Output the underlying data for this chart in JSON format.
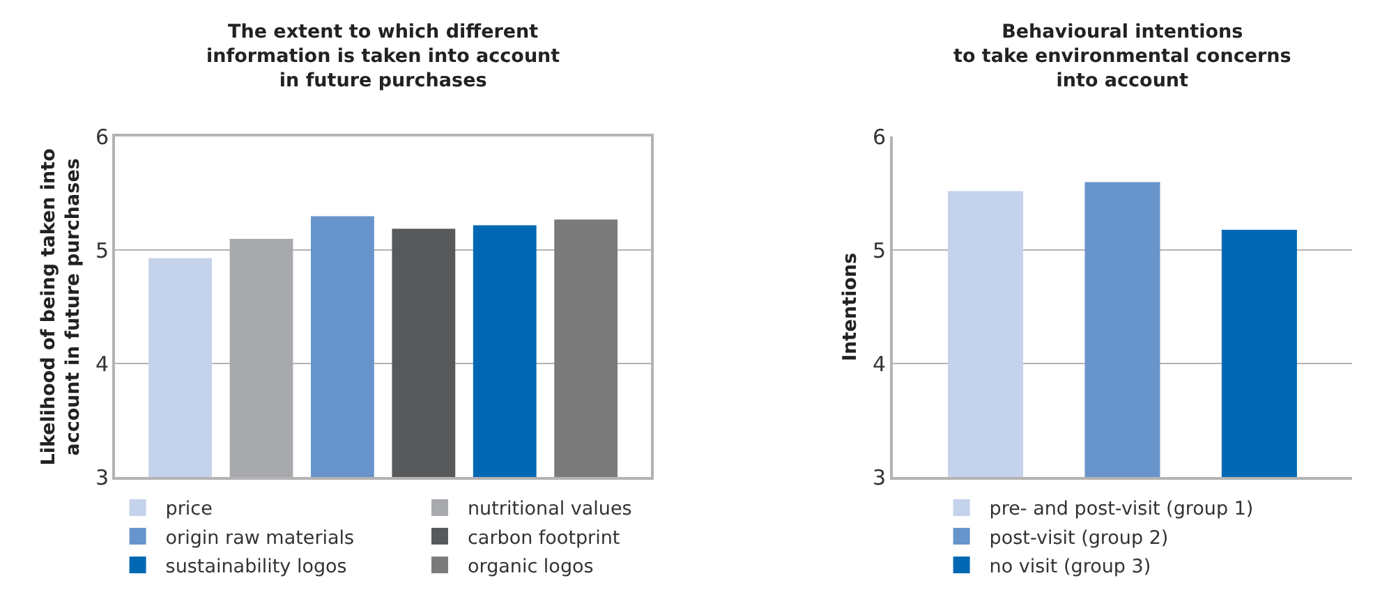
{
  "chart_data": [
    {
      "type": "bar",
      "title": "The extent to which different\ninformation is taken into account\nin future purchases",
      "ylabel": "Likelihood of being taken into\naccount in future purchases",
      "categories": [
        null,
        null,
        null,
        null,
        null,
        null
      ],
      "series": [
        {
          "name": "price",
          "color": "#c5d2eb",
          "values": [
            4.93,
            null,
            null,
            null,
            null,
            null
          ]
        },
        {
          "name": "nutritional values",
          "color": "#a8a9ad",
          "values": [
            null,
            5.1,
            null,
            null,
            null,
            null
          ]
        },
        {
          "name": "origin raw materials",
          "color": "#6794cb",
          "values": [
            null,
            null,
            5.3,
            null,
            null,
            null
          ]
        },
        {
          "name": "carbon footprint",
          "color": "#58595b",
          "values": [
            null,
            null,
            null,
            5.19,
            null,
            null
          ]
        },
        {
          "name": "sustainability logos",
          "color": "#0068b3",
          "values": [
            null,
            null,
            null,
            null,
            5.22,
            null
          ]
        },
        {
          "name": "organic logos",
          "color": "#7a7a7a",
          "values": [
            null,
            null,
            null,
            null,
            null,
            5.27
          ]
        }
      ],
      "ylim": [
        3,
        6
      ],
      "yticks": [
        3,
        4,
        5,
        6
      ],
      "grid": "y",
      "legend": "bottom"
    },
    {
      "type": "bar",
      "title": "Behavioural intentions\nto take environmental concerns\ninto account",
      "ylabel": "Intentions",
      "categories": [
        null,
        null,
        null
      ],
      "series": [
        {
          "name": "pre- and post-visit (group 1)",
          "color": "#c5d2eb",
          "values": [
            5.52,
            null,
            null
          ]
        },
        {
          "name": "post-visit (group 2)",
          "color": "#6794cb",
          "values": [
            null,
            5.6,
            null
          ]
        },
        {
          "name": "no visit (group 3)",
          "color": "#0068b3",
          "values": [
            null,
            null,
            5.18
          ]
        }
      ],
      "ylim": [
        3,
        6
      ],
      "yticks": [
        3,
        4,
        5,
        6
      ],
      "grid": "y",
      "legend": "bottom"
    }
  ]
}
